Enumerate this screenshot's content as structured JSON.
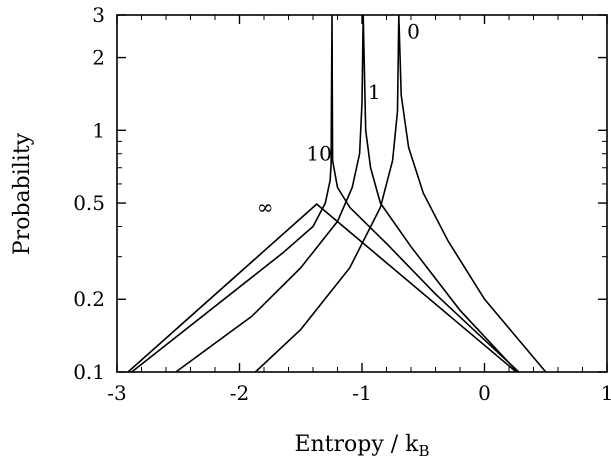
{
  "chart_data": {
    "type": "line",
    "title": "",
    "xlabel": "Entropy / k",
    "xlabel_subscript": "B",
    "ylabel": "Probability",
    "xlim": [
      -3,
      1
    ],
    "ylim": [
      0.1,
      3
    ],
    "yscale": "log",
    "grid": false,
    "x_ticks": [
      -3,
      -2,
      -1,
      0,
      1
    ],
    "x_tick_labels": [
      "-3",
      "-2",
      "-1",
      "0",
      "1"
    ],
    "y_ticks": [
      0.1,
      0.2,
      0.5,
      1,
      2,
      3
    ],
    "y_tick_labels": [
      "0.1",
      "0.2",
      "0.5",
      "1",
      "2",
      "3"
    ],
    "series": [
      {
        "name": "∞",
        "label_at": [
          -1.79,
          0.45
        ],
        "points": [
          [
            -2.91,
            0.1
          ],
          [
            -1.37,
            0.495
          ],
          [
            0.26,
            0.1
          ]
        ]
      },
      {
        "name": "10",
        "label_at": [
          -1.35,
          0.75
        ],
        "points": [
          [
            -2.88,
            0.1
          ],
          [
            -1.65,
            0.31
          ],
          [
            -1.4,
            0.4
          ],
          [
            -1.3,
            0.5
          ],
          [
            -1.26,
            0.62
          ],
          [
            -1.252,
            0.72
          ],
          [
            -1.25,
            1.2
          ],
          [
            -1.245,
            3.0
          ],
          [
            -1.245,
            3.0
          ],
          [
            -1.24,
            0.75
          ],
          [
            -1.2,
            0.58
          ],
          [
            -1.1,
            0.48
          ],
          [
            -0.8,
            0.34
          ],
          [
            -0.4,
            0.21
          ],
          [
            0.28,
            0.1
          ]
        ]
      },
      {
        "name": "1",
        "label_at": [
          -0.9,
          1.35
        ],
        "points": [
          [
            -2.52,
            0.1
          ],
          [
            -1.9,
            0.17
          ],
          [
            -1.5,
            0.27
          ],
          [
            -1.2,
            0.42
          ],
          [
            -1.08,
            0.58
          ],
          [
            -1.02,
            0.8
          ],
          [
            -1.0,
            1.3
          ],
          [
            -0.99,
            3.0
          ],
          [
            -0.99,
            3.0
          ],
          [
            -0.97,
            1.0
          ],
          [
            -0.93,
            0.7
          ],
          [
            -0.85,
            0.5
          ],
          [
            -0.6,
            0.33
          ],
          [
            -0.2,
            0.18
          ],
          [
            0.27,
            0.1
          ]
        ]
      },
      {
        "name": "0",
        "label_at": [
          -0.58,
          2.4
        ],
        "points": [
          [
            -1.87,
            0.1
          ],
          [
            -1.5,
            0.15
          ],
          [
            -1.1,
            0.27
          ],
          [
            -0.85,
            0.48
          ],
          [
            -0.75,
            0.75
          ],
          [
            -0.71,
            1.2
          ],
          [
            -0.7,
            3.0
          ],
          [
            -0.7,
            3.0
          ],
          [
            -0.68,
            1.4
          ],
          [
            -0.62,
            0.85
          ],
          [
            -0.5,
            0.55
          ],
          [
            -0.3,
            0.35
          ],
          [
            0.0,
            0.2
          ],
          [
            0.5,
            0.1
          ]
        ]
      }
    ]
  }
}
